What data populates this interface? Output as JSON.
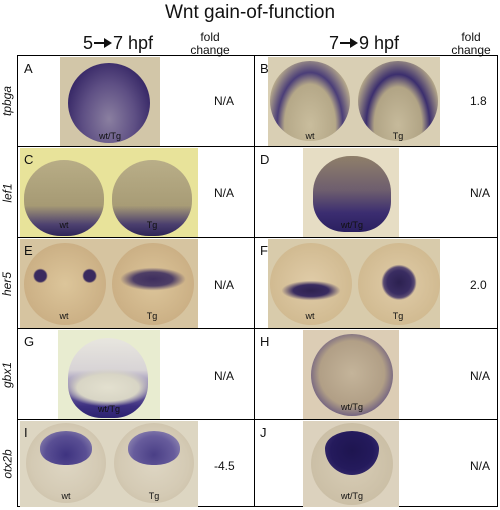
{
  "title": "Wnt gain-of-function",
  "columns": {
    "left_from": "5",
    "left_to": "7 hpf",
    "right_from": "7",
    "right_to": "9 hpf",
    "fold_change": "fold change"
  },
  "rows": [
    {
      "gene": "tpbga",
      "left": {
        "letter": "A",
        "labels": [
          "wt/Tg"
        ],
        "fold": "N/A"
      },
      "right": {
        "letter": "B",
        "labels": [
          "wt",
          "Tg"
        ],
        "fold": "1.8"
      }
    },
    {
      "gene": "lef1",
      "left": {
        "letter": "C",
        "labels": [
          "wt",
          "Tg"
        ],
        "fold": "N/A"
      },
      "right": {
        "letter": "D",
        "labels": [
          "wt/Tg"
        ],
        "fold": "N/A"
      }
    },
    {
      "gene": "her5",
      "left": {
        "letter": "E",
        "labels": [
          "wt",
          "Tg"
        ],
        "fold": "N/A"
      },
      "right": {
        "letter": "F",
        "labels": [
          "wt",
          "Tg"
        ],
        "fold": "2.0"
      }
    },
    {
      "gene": "gbx1",
      "left": {
        "letter": "G",
        "labels": [
          "wt/Tg"
        ],
        "fold": "N/A"
      },
      "right": {
        "letter": "H",
        "labels": [
          "wt/Tg"
        ],
        "fold": "N/A"
      }
    },
    {
      "gene": "otx2b",
      "left": {
        "letter": "I",
        "labels": [
          "wt",
          "Tg"
        ],
        "fold": "-4.5"
      },
      "right": {
        "letter": "J",
        "labels": [
          "wt/Tg"
        ],
        "fold": "N/A"
      }
    }
  ]
}
